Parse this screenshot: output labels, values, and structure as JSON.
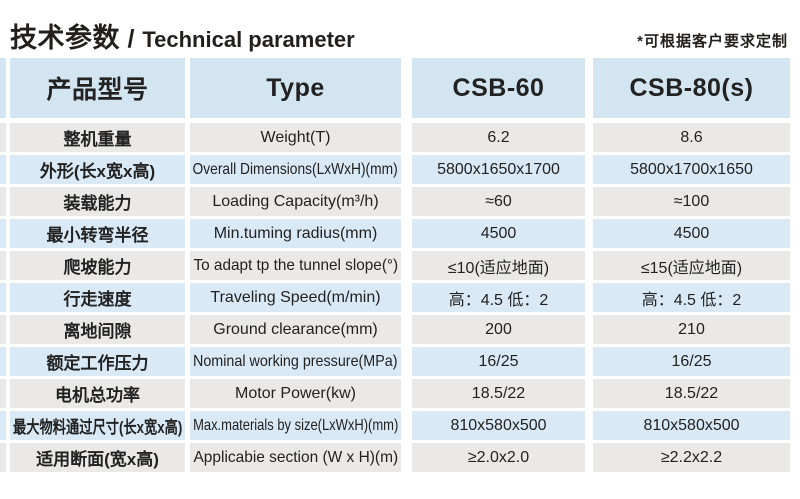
{
  "page": {
    "title_zh": "技术参数",
    "title_sep": " / ",
    "title_en": "Technical parameter",
    "note": "*可根据客户要求定制"
  },
  "colors": {
    "header_bg": "#d4e5f2",
    "row_blue": "#d9e9f6",
    "row_gray": "#eae9e7",
    "text": "#222222"
  },
  "table": {
    "header": {
      "col1": "产品型号",
      "col2": "Type",
      "col3": "CSB-60",
      "col4": "CSB-80(s)"
    },
    "rows": [
      {
        "name_zh": "整机重量",
        "name_en": "Weight(T)",
        "csb60": "6.2",
        "csb80": "8.6"
      },
      {
        "name_zh": "外形(长x宽x高)",
        "name_en": "Overall Dimensions(LxWxH)(mm)",
        "csb60": "5800x1650x1700",
        "csb80": "5800x1700x1650"
      },
      {
        "name_zh": "装载能力",
        "name_en": "Loading Capacity(m³/h)",
        "csb60": "≈60",
        "csb80": "≈100"
      },
      {
        "name_zh": "最小转弯半径",
        "name_en": "Min.tuming radius(mm)",
        "csb60": "4500",
        "csb80": "4500"
      },
      {
        "name_zh": "爬坡能力",
        "name_en": "To adapt tp the tunnel slope(°)",
        "csb60": "≤10(适应地面)",
        "csb80": "≤15(适应地面)"
      },
      {
        "name_zh": "行走速度",
        "name_en": "Traveling Speed(m/min)",
        "csb60": "高：4.5 低：2",
        "csb80": "高：4.5 低：2"
      },
      {
        "name_zh": "离地间隙",
        "name_en": "Ground clearance(mm)",
        "csb60": "200",
        "csb80": "210"
      },
      {
        "name_zh": "额定工作压力",
        "name_en": "Nominal working pressure(MPa)",
        "csb60": "16/25",
        "csb80": "16/25"
      },
      {
        "name_zh": "电机总功率",
        "name_en": "Motor Power(kw)",
        "csb60": "18.5/22",
        "csb80": "18.5/22"
      },
      {
        "name_zh": "最大物料通过尺寸(长x宽x高)",
        "name_en": "Max.materials by size(LxWxH)(mm)",
        "csb60": "810x580x500",
        "csb80": "810x580x500"
      },
      {
        "name_zh": "适用断面(宽x高)",
        "name_en": "Applicabie section (W x H)(m)",
        "csb60": "≥2.0x2.0",
        "csb80": "≥2.2x2.2"
      }
    ]
  }
}
